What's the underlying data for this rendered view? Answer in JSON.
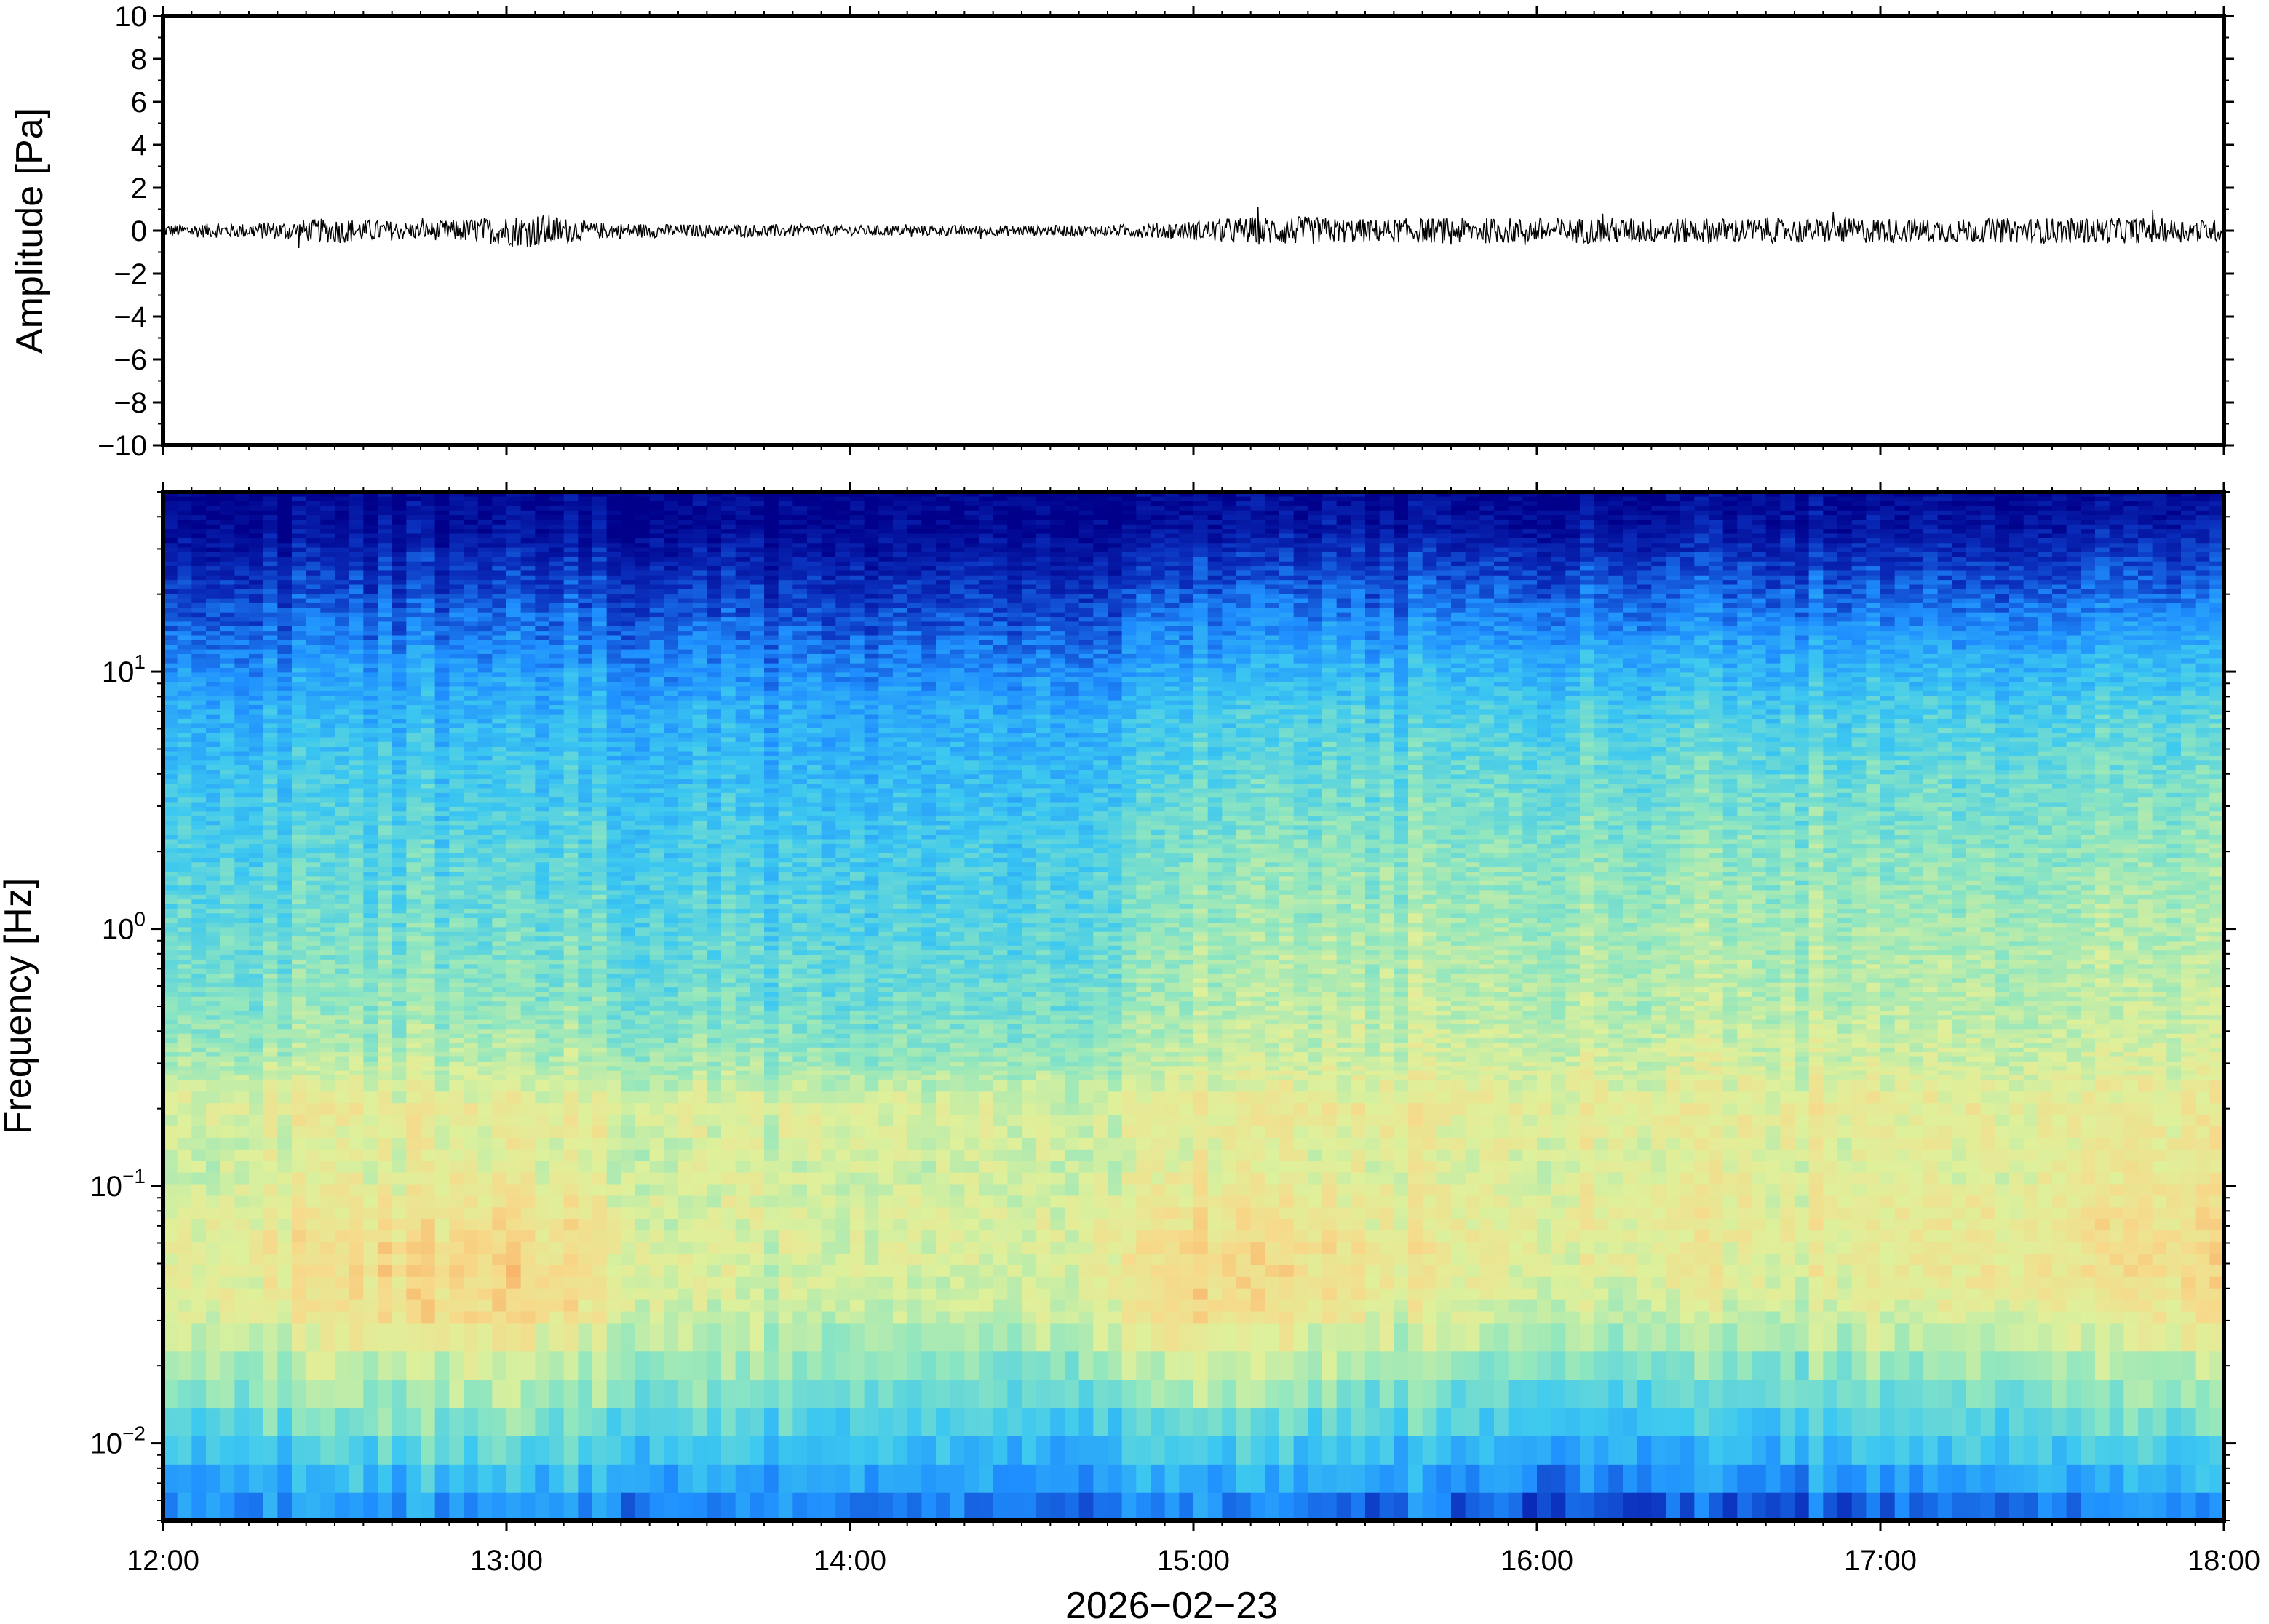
{
  "chart_data": [
    {
      "type": "line",
      "ylabel": "Amplitude [Pa]",
      "ylim": [
        -10,
        10
      ],
      "yticks": [
        10,
        8,
        6,
        4,
        2,
        0,
        -2,
        -4,
        -6,
        -8,
        -10
      ],
      "ytick_labels": [
        "10",
        "8",
        "6",
        "4",
        "2",
        "0",
        "−2",
        "−4",
        "−6",
        "−8",
        "−10"
      ],
      "xlim": [
        "12:00",
        "18:00"
      ],
      "series": [
        {
          "trace": "waveform",
          "x_hours": [
            12.0,
            12.25,
            12.5,
            12.75,
            13.0,
            13.1,
            13.25,
            13.5,
            13.75,
            14.0,
            14.25,
            14.5,
            14.75,
            15.0,
            15.1,
            15.25,
            15.5,
            15.75,
            16.0,
            16.25,
            16.5,
            16.75,
            17.0,
            17.25,
            17.5,
            17.75,
            18.0
          ],
          "amplitude_envelope_pa": [
            0.3,
            0.35,
            0.6,
            0.4,
            0.7,
            0.8,
            0.4,
            0.3,
            0.3,
            0.25,
            0.25,
            0.25,
            0.25,
            0.45,
            0.6,
            0.7,
            0.55,
            0.6,
            0.6,
            0.6,
            0.6,
            0.55,
            0.6,
            0.55,
            0.6,
            0.6,
            0.5
          ]
        }
      ],
      "color": "#000000"
    },
    {
      "type": "heatmap",
      "ylabel": "Frequency [Hz]",
      "xlabel": "2026−02−23",
      "y_scale": "log",
      "ylim": [
        0.005,
        50
      ],
      "yticks": [
        0.01,
        0.1,
        1,
        10
      ],
      "ytick_labels": [
        {
          "base": "10",
          "exp": "−2"
        },
        {
          "base": "10",
          "exp": "−1"
        },
        {
          "base": "10",
          "exp": "0"
        },
        {
          "base": "10",
          "exp": "1"
        }
      ],
      "xlim": [
        "12:00",
        "18:00"
      ],
      "xticks": [
        "12:00",
        "13:00",
        "14:00",
        "15:00",
        "16:00",
        "17:00",
        "18:00"
      ],
      "colormap": [
        "#00008a",
        "#0a2dbb",
        "#1f8fff",
        "#3cc8f0",
        "#8ee6c0",
        "#dff09a",
        "#f7d98a",
        "#f7a35a",
        "#e8542a"
      ],
      "log10_frequency_rows": [
        -2.3,
        -2.0,
        -1.7,
        -1.5,
        -1.3,
        -1.1,
        -0.9,
        -0.7,
        -0.5,
        -0.3,
        0.0,
        0.3,
        0.6,
        0.85,
        1.0,
        1.2,
        1.4,
        1.55,
        1.7
      ],
      "time_hours": [
        12.0,
        12.5,
        13.0,
        13.5,
        14.0,
        14.5,
        15.0,
        15.5,
        16.0,
        16.5,
        17.0,
        17.5,
        18.0
      ],
      "relative_level": [
        [
          0.25,
          0.25,
          0.25,
          0.22,
          0.22,
          0.2,
          0.22,
          0.18,
          0.15,
          0.15,
          0.18,
          0.2,
          0.2
        ],
        [
          0.4,
          0.42,
          0.45,
          0.38,
          0.38,
          0.35,
          0.4,
          0.38,
          0.35,
          0.33,
          0.38,
          0.4,
          0.4
        ],
        [
          0.55,
          0.58,
          0.62,
          0.52,
          0.5,
          0.5,
          0.6,
          0.55,
          0.5,
          0.5,
          0.52,
          0.55,
          0.55
        ],
        [
          0.62,
          0.68,
          0.75,
          0.6,
          0.58,
          0.58,
          0.72,
          0.65,
          0.6,
          0.6,
          0.62,
          0.65,
          0.68
        ],
        [
          0.65,
          0.72,
          0.78,
          0.63,
          0.62,
          0.62,
          0.75,
          0.7,
          0.65,
          0.65,
          0.66,
          0.7,
          0.72
        ],
        [
          0.65,
          0.68,
          0.72,
          0.62,
          0.62,
          0.62,
          0.7,
          0.66,
          0.66,
          0.66,
          0.66,
          0.68,
          0.7
        ],
        [
          0.6,
          0.62,
          0.65,
          0.6,
          0.6,
          0.6,
          0.64,
          0.63,
          0.64,
          0.63,
          0.63,
          0.64,
          0.66
        ],
        [
          0.65,
          0.66,
          0.67,
          0.64,
          0.63,
          0.62,
          0.66,
          0.66,
          0.67,
          0.66,
          0.66,
          0.66,
          0.66
        ],
        [
          0.55,
          0.56,
          0.57,
          0.53,
          0.52,
          0.52,
          0.58,
          0.6,
          0.62,
          0.6,
          0.6,
          0.6,
          0.6
        ],
        [
          0.5,
          0.5,
          0.52,
          0.47,
          0.46,
          0.46,
          0.55,
          0.57,
          0.58,
          0.57,
          0.57,
          0.57,
          0.57
        ],
        [
          0.46,
          0.46,
          0.47,
          0.43,
          0.42,
          0.42,
          0.52,
          0.54,
          0.55,
          0.54,
          0.54,
          0.54,
          0.54
        ],
        [
          0.42,
          0.42,
          0.43,
          0.4,
          0.39,
          0.39,
          0.48,
          0.5,
          0.51,
          0.5,
          0.5,
          0.5,
          0.5
        ],
        [
          0.38,
          0.38,
          0.39,
          0.36,
          0.35,
          0.35,
          0.42,
          0.45,
          0.46,
          0.45,
          0.45,
          0.45,
          0.45
        ],
        [
          0.33,
          0.33,
          0.34,
          0.32,
          0.31,
          0.31,
          0.37,
          0.4,
          0.41,
          0.4,
          0.4,
          0.4,
          0.4
        ],
        [
          0.28,
          0.28,
          0.29,
          0.27,
          0.26,
          0.26,
          0.31,
          0.34,
          0.35,
          0.34,
          0.34,
          0.34,
          0.34
        ],
        [
          0.2,
          0.2,
          0.22,
          0.19,
          0.18,
          0.18,
          0.23,
          0.25,
          0.26,
          0.25,
          0.25,
          0.25,
          0.25
        ],
        [
          0.12,
          0.12,
          0.14,
          0.11,
          0.1,
          0.1,
          0.14,
          0.15,
          0.16,
          0.15,
          0.15,
          0.15,
          0.15
        ],
        [
          0.05,
          0.05,
          0.06,
          0.04,
          0.04,
          0.04,
          0.06,
          0.07,
          0.07,
          0.07,
          0.07,
          0.07,
          0.07
        ],
        [
          0.01,
          0.01,
          0.02,
          0.01,
          0.01,
          0.01,
          0.02,
          0.02,
          0.02,
          0.02,
          0.02,
          0.02,
          0.02
        ]
      ]
    }
  ]
}
